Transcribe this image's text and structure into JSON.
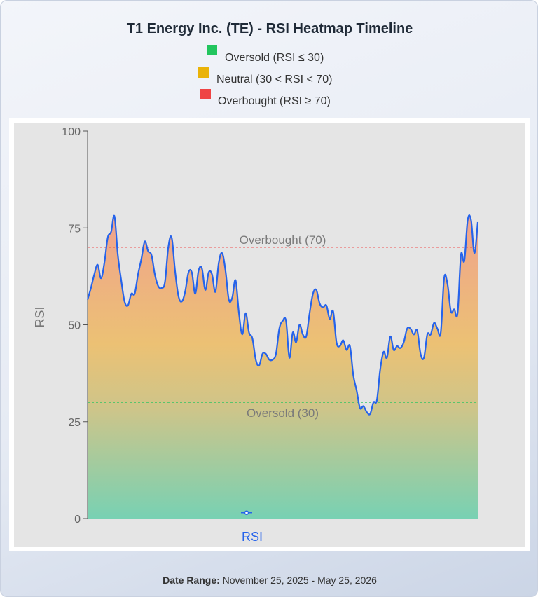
{
  "chart_data": {
    "type": "area",
    "title": "T1 Energy Inc. (TE) - RSI Heatmap Timeline",
    "ylabel": "RSI",
    "ylim": [
      0,
      100
    ],
    "yticks": [
      0,
      25,
      50,
      75,
      100
    ],
    "grid": false,
    "legend": {
      "placement": "top-center",
      "items": [
        {
          "label": "Oversold (RSI ≤ 30)",
          "color": "#22c55e"
        },
        {
          "label": "Neutral (30 < RSI < 70)",
          "color": "#eab308"
        },
        {
          "label": "Overbought (RSI ≥ 70)",
          "color": "#ef4444"
        }
      ]
    },
    "thresholds": [
      {
        "label": "Overbought (70)",
        "value": 70,
        "color": "#ef4444"
      },
      {
        "label": "Oversold (30)",
        "value": 30,
        "color": "#22c55e"
      }
    ],
    "series": [
      {
        "name": "RSI",
        "color": "#2563eb",
        "values": [
          56.5,
          59.5,
          63.0,
          65.5,
          62.0,
          66.0,
          72.5,
          74.0,
          78.0,
          68.0,
          61.5,
          56.0,
          55.0,
          58.0,
          58.0,
          63.0,
          67.0,
          71.5,
          69.0,
          68.0,
          63.0,
          60.0,
          59.5,
          61.0,
          70.0,
          72.5,
          64.0,
          57.5,
          56.0,
          58.5,
          63.5,
          63.5,
          58.0,
          64.0,
          64.5,
          59.0,
          63.5,
          63.0,
          58.5,
          66.0,
          68.5,
          64.0,
          56.5,
          57.0,
          61.5,
          53.0,
          47.5,
          53.0,
          48.0,
          46.5,
          41.0,
          39.5,
          42.5,
          42.5,
          41.0,
          41.0,
          42.5,
          49.0,
          51.0,
          51.0,
          41.5,
          48.0,
          45.5,
          50.0,
          47.5,
          47.0,
          53.0,
          58.0,
          59.0,
          55.5,
          54.5,
          55.0,
          51.5,
          53.5,
          45.5,
          44.5,
          46.0,
          43.5,
          44.5,
          37.0,
          33.0,
          28.5,
          29.0,
          27.5,
          27.0,
          30.0,
          30.5,
          38.5,
          43.0,
          41.5,
          47.0,
          43.5,
          44.5,
          44.0,
          45.5,
          49.0,
          49.0,
          47.5,
          48.5,
          42.5,
          41.5,
          47.5,
          47.5,
          50.5,
          49.0,
          48.0,
          62.0,
          60.5,
          53.5,
          54.0,
          53.0,
          68.0,
          66.5,
          77.0,
          77.0,
          68.5,
          76.5
        ]
      }
    ],
    "xaxis": {
      "label": "RSI",
      "marker_value": 1.5
    }
  },
  "footer": {
    "label": "Date Range:",
    "value": "November 25, 2025 - May 25, 2026"
  }
}
